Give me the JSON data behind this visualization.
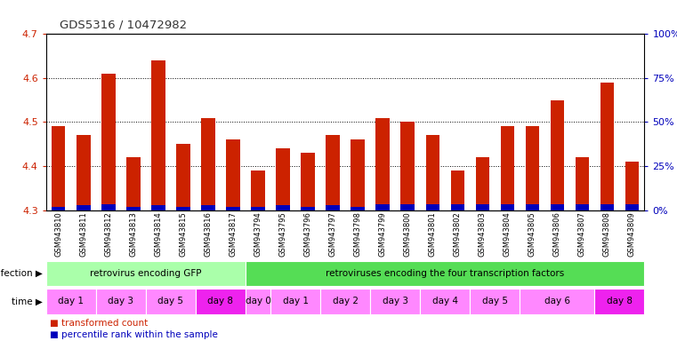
{
  "title": "GDS5316 / 10472982",
  "samples": [
    "GSM943810",
    "GSM943811",
    "GSM943812",
    "GSM943813",
    "GSM943814",
    "GSM943815",
    "GSM943816",
    "GSM943817",
    "GSM943794",
    "GSM943795",
    "GSM943796",
    "GSM943797",
    "GSM943798",
    "GSM943799",
    "GSM943800",
    "GSM943801",
    "GSM943802",
    "GSM943803",
    "GSM943804",
    "GSM943805",
    "GSM943806",
    "GSM943807",
    "GSM943808",
    "GSM943809"
  ],
  "red_values": [
    4.49,
    4.47,
    4.61,
    4.42,
    4.64,
    4.45,
    4.51,
    4.46,
    4.39,
    4.44,
    4.43,
    4.47,
    4.46,
    4.51,
    4.5,
    4.47,
    4.39,
    4.42,
    4.49,
    4.49,
    4.55,
    4.42,
    4.59,
    4.41
  ],
  "blue_heights": [
    0.008,
    0.012,
    0.014,
    0.008,
    0.012,
    0.008,
    0.012,
    0.008,
    0.008,
    0.012,
    0.008,
    0.012,
    0.008,
    0.014,
    0.014,
    0.014,
    0.014,
    0.014,
    0.014,
    0.014,
    0.014,
    0.014,
    0.014,
    0.014
  ],
  "bar_bottom": 4.3,
  "ylim": [
    4.3,
    4.7
  ],
  "yticks": [
    4.3,
    4.4,
    4.5,
    4.6,
    4.7
  ],
  "right_yticks": [
    0,
    25,
    50,
    75,
    100
  ],
  "right_ytick_labels": [
    "0%",
    "25%",
    "50%",
    "75%",
    "100%"
  ],
  "red_color": "#CC2200",
  "blue_color": "#0000BB",
  "infection_groups": [
    {
      "label": "retrovirus encoding GFP",
      "start": 0,
      "end": 8,
      "color": "#AAFFAA"
    },
    {
      "label": "retroviruses encoding the four transcription factors",
      "start": 8,
      "end": 24,
      "color": "#55DD55"
    }
  ],
  "time_groups": [
    {
      "label": "day 1",
      "start": 0,
      "end": 2,
      "color": "#FF88FF"
    },
    {
      "label": "day 3",
      "start": 2,
      "end": 4,
      "color": "#FF88FF"
    },
    {
      "label": "day 5",
      "start": 4,
      "end": 6,
      "color": "#FF88FF"
    },
    {
      "label": "day 8",
      "start": 6,
      "end": 8,
      "color": "#EE22EE"
    },
    {
      "label": "day 0",
      "start": 8,
      "end": 9,
      "color": "#FF88FF"
    },
    {
      "label": "day 1",
      "start": 9,
      "end": 11,
      "color": "#FF88FF"
    },
    {
      "label": "day 2",
      "start": 11,
      "end": 13,
      "color": "#FF88FF"
    },
    {
      "label": "day 3",
      "start": 13,
      "end": 15,
      "color": "#FF88FF"
    },
    {
      "label": "day 4",
      "start": 15,
      "end": 17,
      "color": "#FF88FF"
    },
    {
      "label": "day 5",
      "start": 17,
      "end": 19,
      "color": "#FF88FF"
    },
    {
      "label": "day 6",
      "start": 19,
      "end": 22,
      "color": "#FF88FF"
    },
    {
      "label": "day 8",
      "start": 22,
      "end": 24,
      "color": "#EE22EE"
    }
  ],
  "bar_width": 0.55,
  "title_color": "#333333",
  "left_tick_color": "#CC2200",
  "right_tick_color": "#0000BB",
  "bg_color": "#FFFFFF",
  "plot_bg_color": "#FFFFFF"
}
